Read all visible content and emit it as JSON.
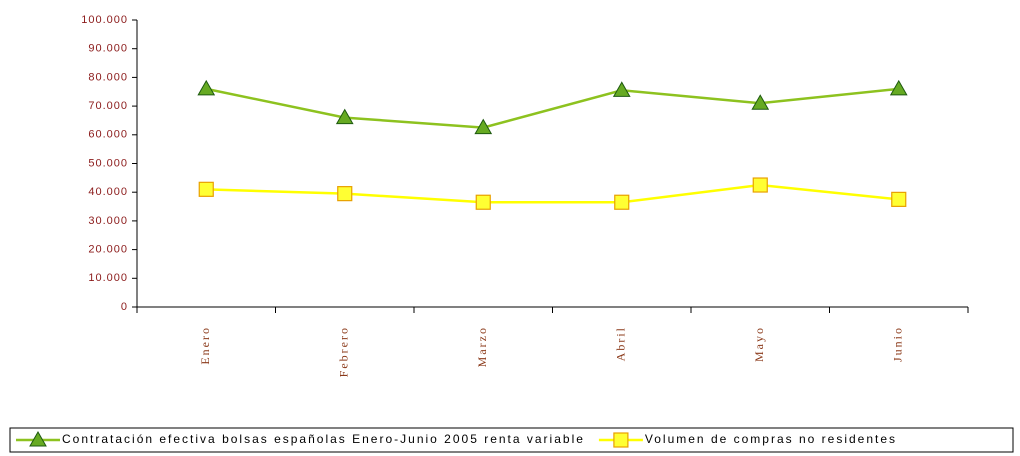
{
  "chart_data": {
    "type": "line",
    "categories": [
      "Enero",
      "Febrero",
      "Marzo",
      "Abril",
      "Mayo",
      "Junio"
    ],
    "series": [
      {
        "name": "Contratación efectiva bolsas españolas Enero-Junio 2005 renta variable",
        "color": "#8dc21f",
        "marker": "triangle",
        "values": [
          76000,
          66000,
          62500,
          75500,
          71000,
          76000
        ]
      },
      {
        "name": "Volumen de compras no residentes",
        "color": "#ffff00",
        "marker": "square",
        "values": [
          41000,
          39500,
          36500,
          36500,
          42500,
          37500
        ]
      }
    ],
    "ylim": [
      0,
      100000
    ],
    "yticks": [
      0,
      {
        "value": 10000,
        "label": "10.000"
      },
      {
        "value": 20000,
        "label": "20.000"
      },
      {
        "value": 30000,
        "label": "30.000"
      },
      {
        "value": 40000,
        "label": "40.000"
      },
      {
        "value": 50000,
        "label": "50.000"
      },
      {
        "value": 60000,
        "label": "60.000"
      },
      {
        "value": 70000,
        "label": "70.000"
      },
      {
        "value": 80000,
        "label": "80.000"
      },
      {
        "value": 90000,
        "label": "90.000"
      },
      {
        "value": 100000,
        "label": "100.000"
      }
    ],
    "grid": false,
    "legend": "bottom"
  }
}
